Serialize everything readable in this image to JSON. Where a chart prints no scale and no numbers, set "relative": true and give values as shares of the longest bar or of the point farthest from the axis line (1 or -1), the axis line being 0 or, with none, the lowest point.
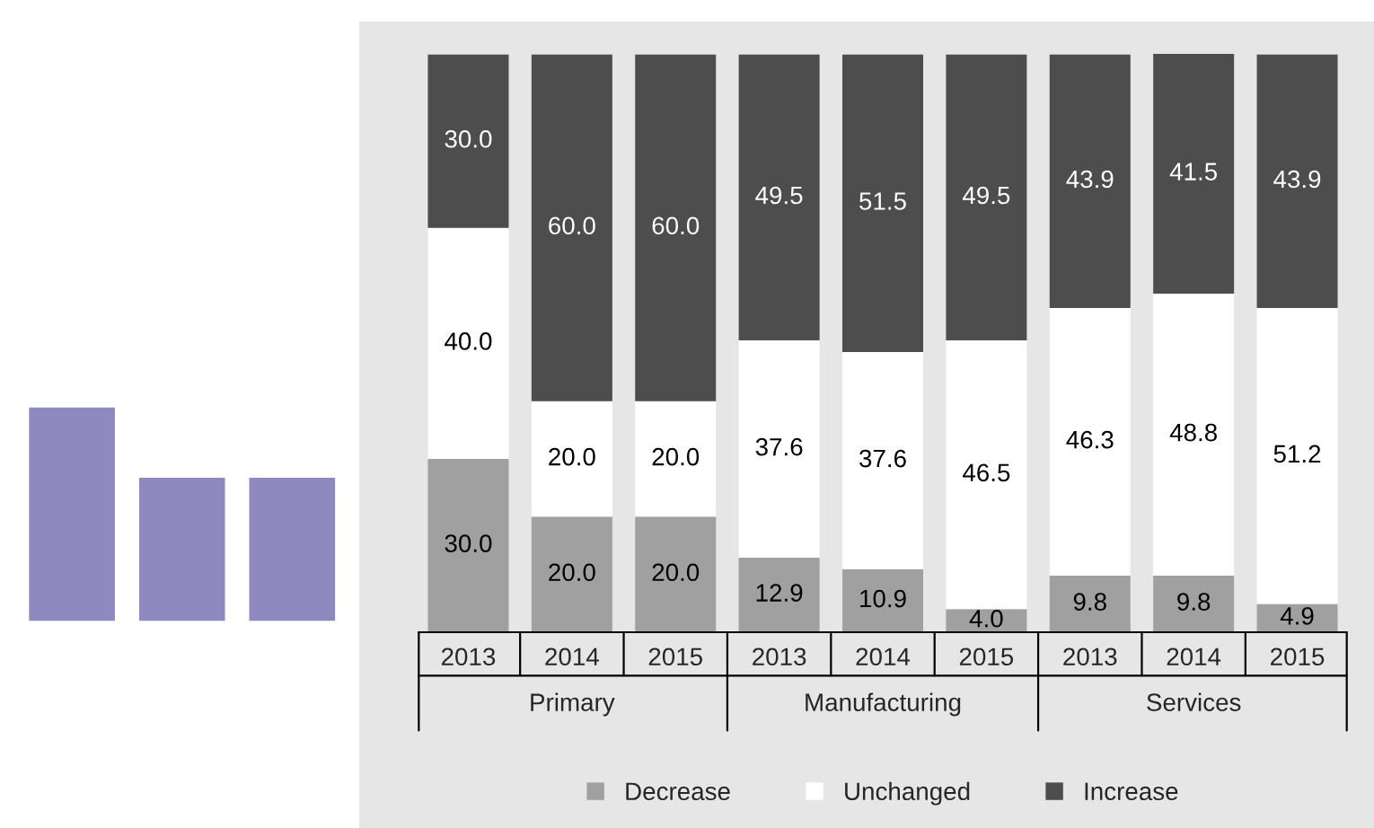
{
  "chart_data": [
    {
      "type": "bar",
      "relative": true,
      "categories": [
        null,
        null,
        null
      ],
      "values": [
        1,
        0.67,
        0.67
      ],
      "color": "#8e89be"
    },
    {
      "type": "bar",
      "stacked": true,
      "legend": "bottom",
      "categories": [
        "2013",
        "2014",
        "2015",
        "2013",
        "2014",
        "2015",
        "2013",
        "2014",
        "2015"
      ],
      "annotations": [
        "Primary",
        "Manufacturing",
        "Services"
      ],
      "series": [
        {
          "name": "Decrease",
          "color": "#a0a0a0",
          "values": [
            30.0,
            20.0,
            20.0,
            12.9,
            10.9,
            4.0,
            9.8,
            9.8,
            4.9
          ],
          "value_labels": [
            "30.0",
            "20.0",
            "20.0",
            "12.9",
            "10.9",
            "4.0",
            "9.8",
            "9.8",
            "4.9"
          ]
        },
        {
          "name": "Unchanged",
          "color": "#ffffff",
          "values": [
            40.0,
            20.0,
            20.0,
            37.6,
            37.6,
            46.5,
            46.3,
            48.8,
            51.2
          ],
          "value_labels": [
            "40.0",
            "20.0",
            "20.0",
            "37.6",
            "37.6",
            "46.5",
            "46.3",
            "48.8",
            "51.2"
          ]
        },
        {
          "name": "Increase",
          "color": "#4d4d4d",
          "values": [
            30.0,
            60.0,
            60.0,
            49.5,
            51.5,
            49.5,
            43.9,
            41.5,
            43.9
          ],
          "value_labels": [
            "30.0",
            "60.0",
            "60.0",
            "49.5",
            "51.5",
            "49.5",
            "43.9",
            "41.5",
            "43.9"
          ]
        }
      ]
    }
  ]
}
